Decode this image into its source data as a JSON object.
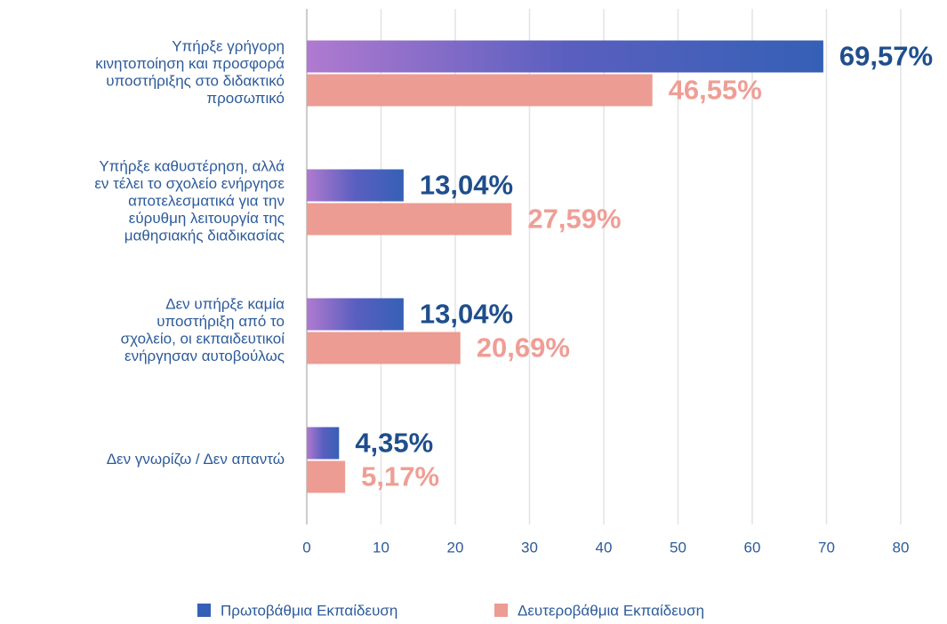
{
  "chart_data": {
    "type": "hbar",
    "categories": [
      "Υπήρξε γρήγορη\nκινητοποίηση και προσφορά\nυποστήριξης στο διδακτικό\nπροσωπικό",
      "Υπήρξε καθυστέρηση, αλλά\nεν τέλει το σχολείο ενήργησε\nαποτελεσματικά για την\nεύρυθμη λειτουργία της\nμαθησιακής διαδικασίας",
      "Δεν υπήρξε καμία\nυποστήριξη από το\nσχολείο, οι εκπαιδευτικοί\nενήργησαν αυτοβούλως",
      "Δεν γνωρίζω / Δεν απαντώ"
    ],
    "series": [
      {
        "name": "Πρωτοβάθμια Εκπαίδευση",
        "color": "#3560b5",
        "label_color": "#1f4e8c",
        "values": [
          69.57,
          13.04,
          13.04,
          4.35
        ],
        "value_labels": [
          "69,57%",
          "13,04%",
          "13,04%",
          "4,35%"
        ]
      },
      {
        "name": "Δευτεροβάθμια Εκπαίδευση",
        "color": "#ec9c93",
        "label_color": "#ef9e95",
        "values": [
          46.55,
          27.59,
          20.69,
          5.17
        ],
        "value_labels": [
          "46,55%",
          "27,59%",
          "20,69%",
          "5,17%"
        ]
      }
    ],
    "xlim": [
      0,
      80
    ],
    "xticks": [
      0,
      10,
      20,
      30,
      40,
      50,
      60,
      70,
      80
    ],
    "grid": true,
    "legend": "bottom"
  }
}
